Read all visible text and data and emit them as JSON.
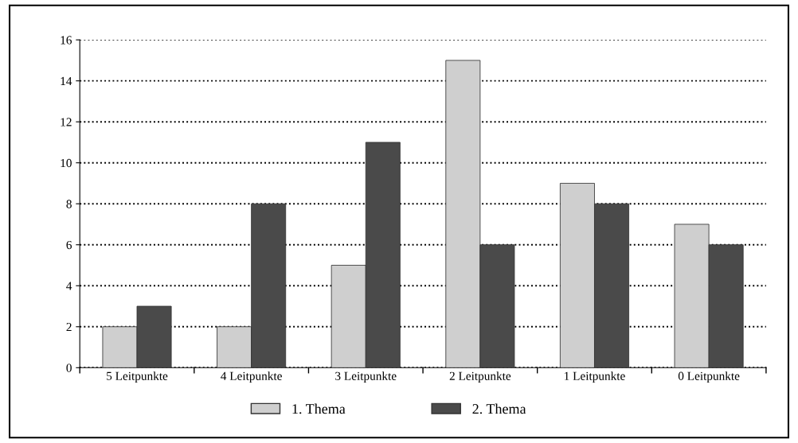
{
  "chart_data": {
    "type": "bar",
    "categories": [
      "5 Leitpunkte",
      "4 Leitpunkte",
      "3 Leitpunkte",
      "2 Leitpunkte",
      "1 Leitpunkte",
      "0 Leitpunkte"
    ],
    "series": [
      {
        "name": "1. Thema",
        "color": "#cfcfcf",
        "values": [
          2,
          2,
          5,
          15,
          9,
          7
        ]
      },
      {
        "name": "2. Thema",
        "color": "#4a4a4a",
        "values": [
          3,
          8,
          11,
          6,
          8,
          6
        ]
      }
    ],
    "ylim": [
      0,
      16
    ],
    "yticks": [
      0,
      2,
      4,
      6,
      8,
      10,
      12,
      14,
      16
    ],
    "grid": "y",
    "legend": "bottom",
    "line_style": "dotted"
  }
}
